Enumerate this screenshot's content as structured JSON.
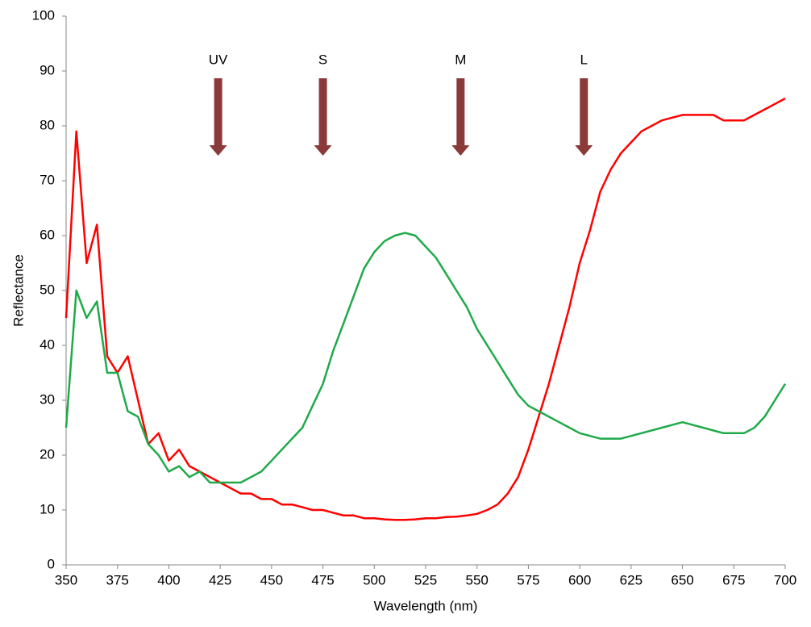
{
  "chart_data": {
    "type": "line",
    "x_label": "Wavelength (nm)",
    "y_label": "Reflectance",
    "x": [
      350,
      355,
      360,
      365,
      370,
      375,
      380,
      385,
      390,
      395,
      400,
      405,
      410,
      415,
      420,
      425,
      430,
      435,
      440,
      445,
      450,
      455,
      460,
      465,
      470,
      475,
      480,
      485,
      490,
      495,
      500,
      505,
      510,
      515,
      520,
      525,
      530,
      535,
      540,
      545,
      550,
      555,
      560,
      565,
      570,
      575,
      580,
      585,
      590,
      595,
      600,
      605,
      610,
      615,
      620,
      625,
      630,
      635,
      640,
      645,
      650,
      655,
      660,
      665,
      670,
      675,
      680,
      685,
      690,
      695,
      700
    ],
    "series": [
      {
        "color": "#ff0000",
        "values": [
          45,
          79,
          55,
          62,
          38,
          35,
          38,
          30,
          22,
          24,
          19,
          21,
          18,
          17,
          16,
          15,
          14,
          13,
          13,
          12,
          12,
          11,
          11,
          10.5,
          10,
          10,
          9.5,
          9,
          9,
          8.5,
          8.5,
          8.3,
          8.2,
          8.2,
          8.3,
          8.5,
          8.5,
          8.7,
          8.8,
          9,
          9.3,
          10,
          11,
          13,
          16,
          21,
          27,
          33,
          40,
          47,
          55,
          61,
          68,
          72,
          75,
          77,
          79,
          80,
          81,
          81.5,
          82,
          82,
          82,
          82,
          81,
          81,
          81,
          82,
          83,
          84,
          85
        ]
      },
      {
        "color": "#1faa4a",
        "values": [
          25,
          50,
          45,
          48,
          35,
          35,
          28,
          27,
          22,
          20,
          17,
          18,
          16,
          17,
          15,
          15,
          15,
          15,
          16,
          17,
          19,
          21,
          23,
          25,
          29,
          33,
          39,
          44,
          49,
          54,
          57,
          59,
          60,
          60.5,
          60,
          58,
          56,
          53,
          50,
          47,
          43,
          40,
          37,
          34,
          31,
          29,
          28,
          27,
          26,
          25,
          24,
          23.5,
          23,
          23,
          23,
          23.5,
          24,
          24.5,
          25,
          25.5,
          26,
          25.5,
          25,
          24.5,
          24,
          24,
          24,
          25,
          27,
          30,
          33
        ]
      }
    ],
    "annotations": [
      {
        "text": "UV",
        "x": 424
      },
      {
        "text": "S",
        "x": 475
      },
      {
        "text": "M",
        "x": 542
      },
      {
        "text": "L",
        "x": 602
      }
    ],
    "arrow_color": "#8b3a3a",
    "xlim": [
      350,
      700
    ],
    "ylim": [
      0,
      100
    ],
    "xticks": [
      350,
      375,
      400,
      425,
      450,
      475,
      500,
      525,
      550,
      575,
      600,
      625,
      650,
      675,
      700
    ],
    "yticks": [
      0,
      10,
      20,
      30,
      40,
      50,
      60,
      70,
      80,
      90,
      100
    ],
    "grid": false
  }
}
